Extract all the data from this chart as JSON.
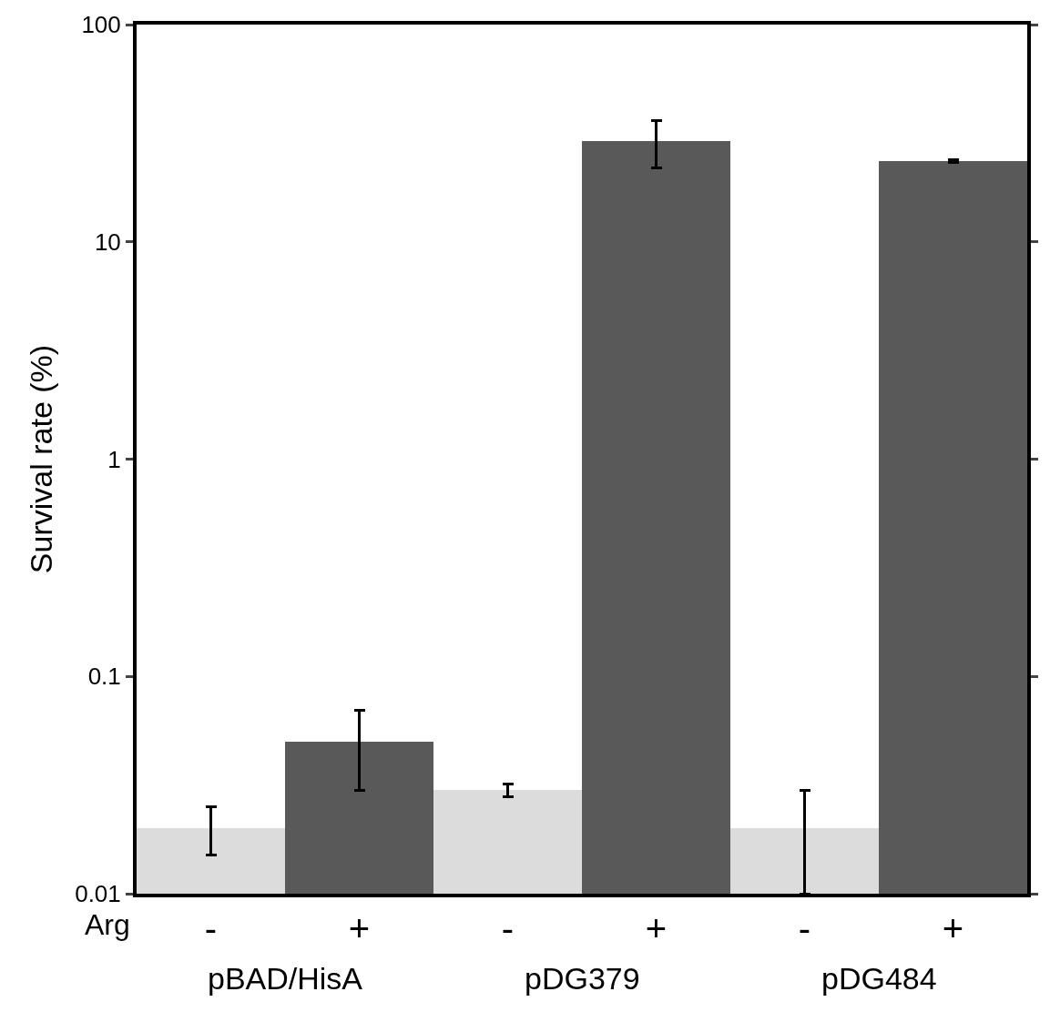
{
  "chart_data": {
    "type": "bar",
    "ylabel": "Survival rate (%)",
    "categories": [
      "-",
      "+",
      "-",
      "+",
      "-",
      "+"
    ],
    "values": [
      0.02,
      0.05,
      0.03,
      29,
      0.02,
      23.5
    ],
    "colors": [
      "#dcdcdc",
      "#595959",
      "#dcdcdc",
      "#595959",
      "#dcdcdc",
      "#595959"
    ],
    "errors": [
      [
        0.015,
        0.025
      ],
      [
        0.03,
        0.07
      ],
      [
        0.028,
        0.032
      ],
      [
        22,
        36
      ],
      [
        0.01,
        0.03
      ],
      [
        23.2,
        23.8
      ]
    ],
    "annotations": [
      "Arg",
      "pBAD/HisA",
      "pDG379",
      "pDG484"
    ],
    "log": true,
    "ylim": [
      0.01,
      100
    ],
    "yticks": [
      0.01,
      0.1,
      1,
      10,
      100
    ]
  }
}
